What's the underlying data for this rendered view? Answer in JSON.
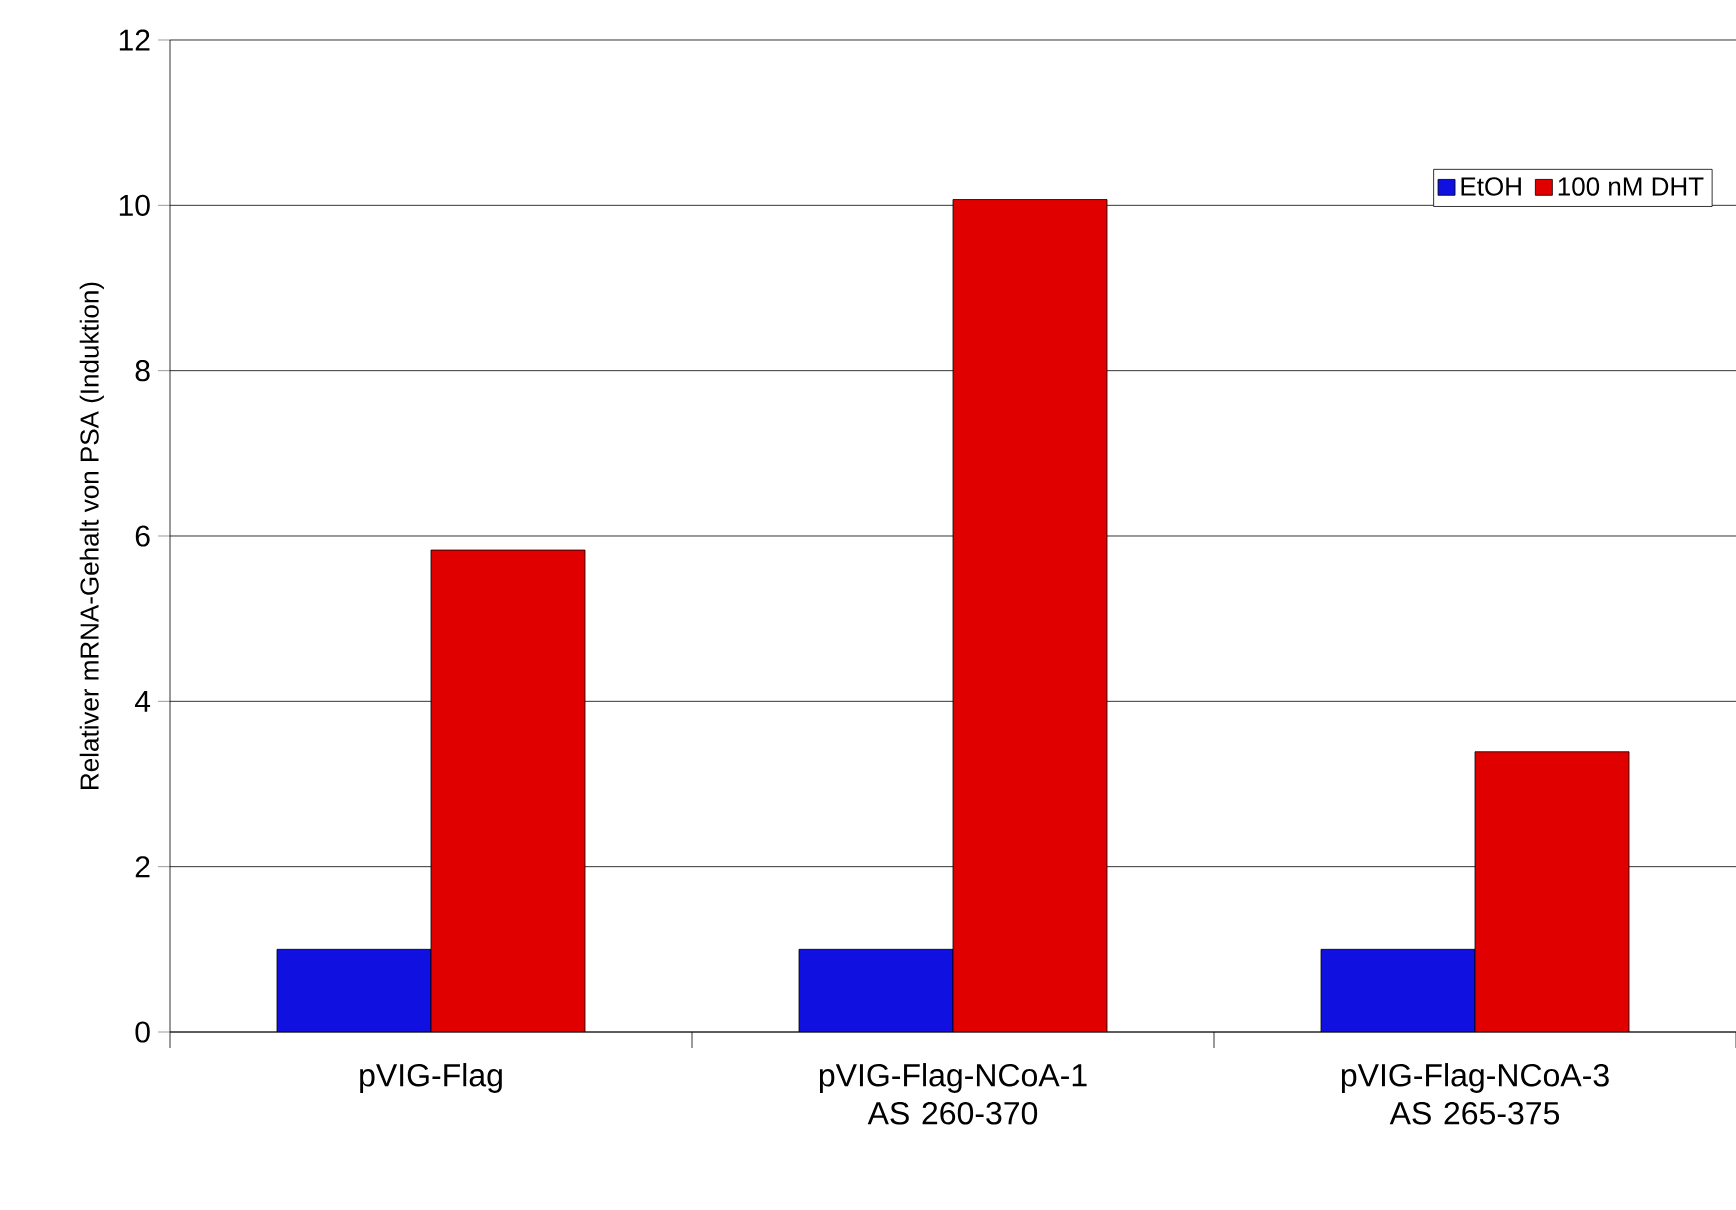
{
  "chart_data": {
    "type": "bar",
    "ylabel": "Relativer mRNA-Gehalt von PSA (Induktion)",
    "categories": [
      "pVIG-Flag",
      "pVIG-Flag-NCoA-1 AS 260-370",
      "pVIG-Flag-NCoA-3 AS 265-375"
    ],
    "series": [
      {
        "name": "EtOH",
        "color": "#1010e0",
        "values": [
          1.0,
          1.0,
          1.0
        ]
      },
      {
        "name": "100 nM DHT",
        "color": "#e00000",
        "values": [
          5.83,
          10.07,
          3.39
        ]
      }
    ],
    "ylim": [
      0,
      12
    ],
    "yticks": [
      0,
      2,
      4,
      6,
      8,
      10,
      12
    ],
    "grid": "y",
    "legend": "top right"
  }
}
